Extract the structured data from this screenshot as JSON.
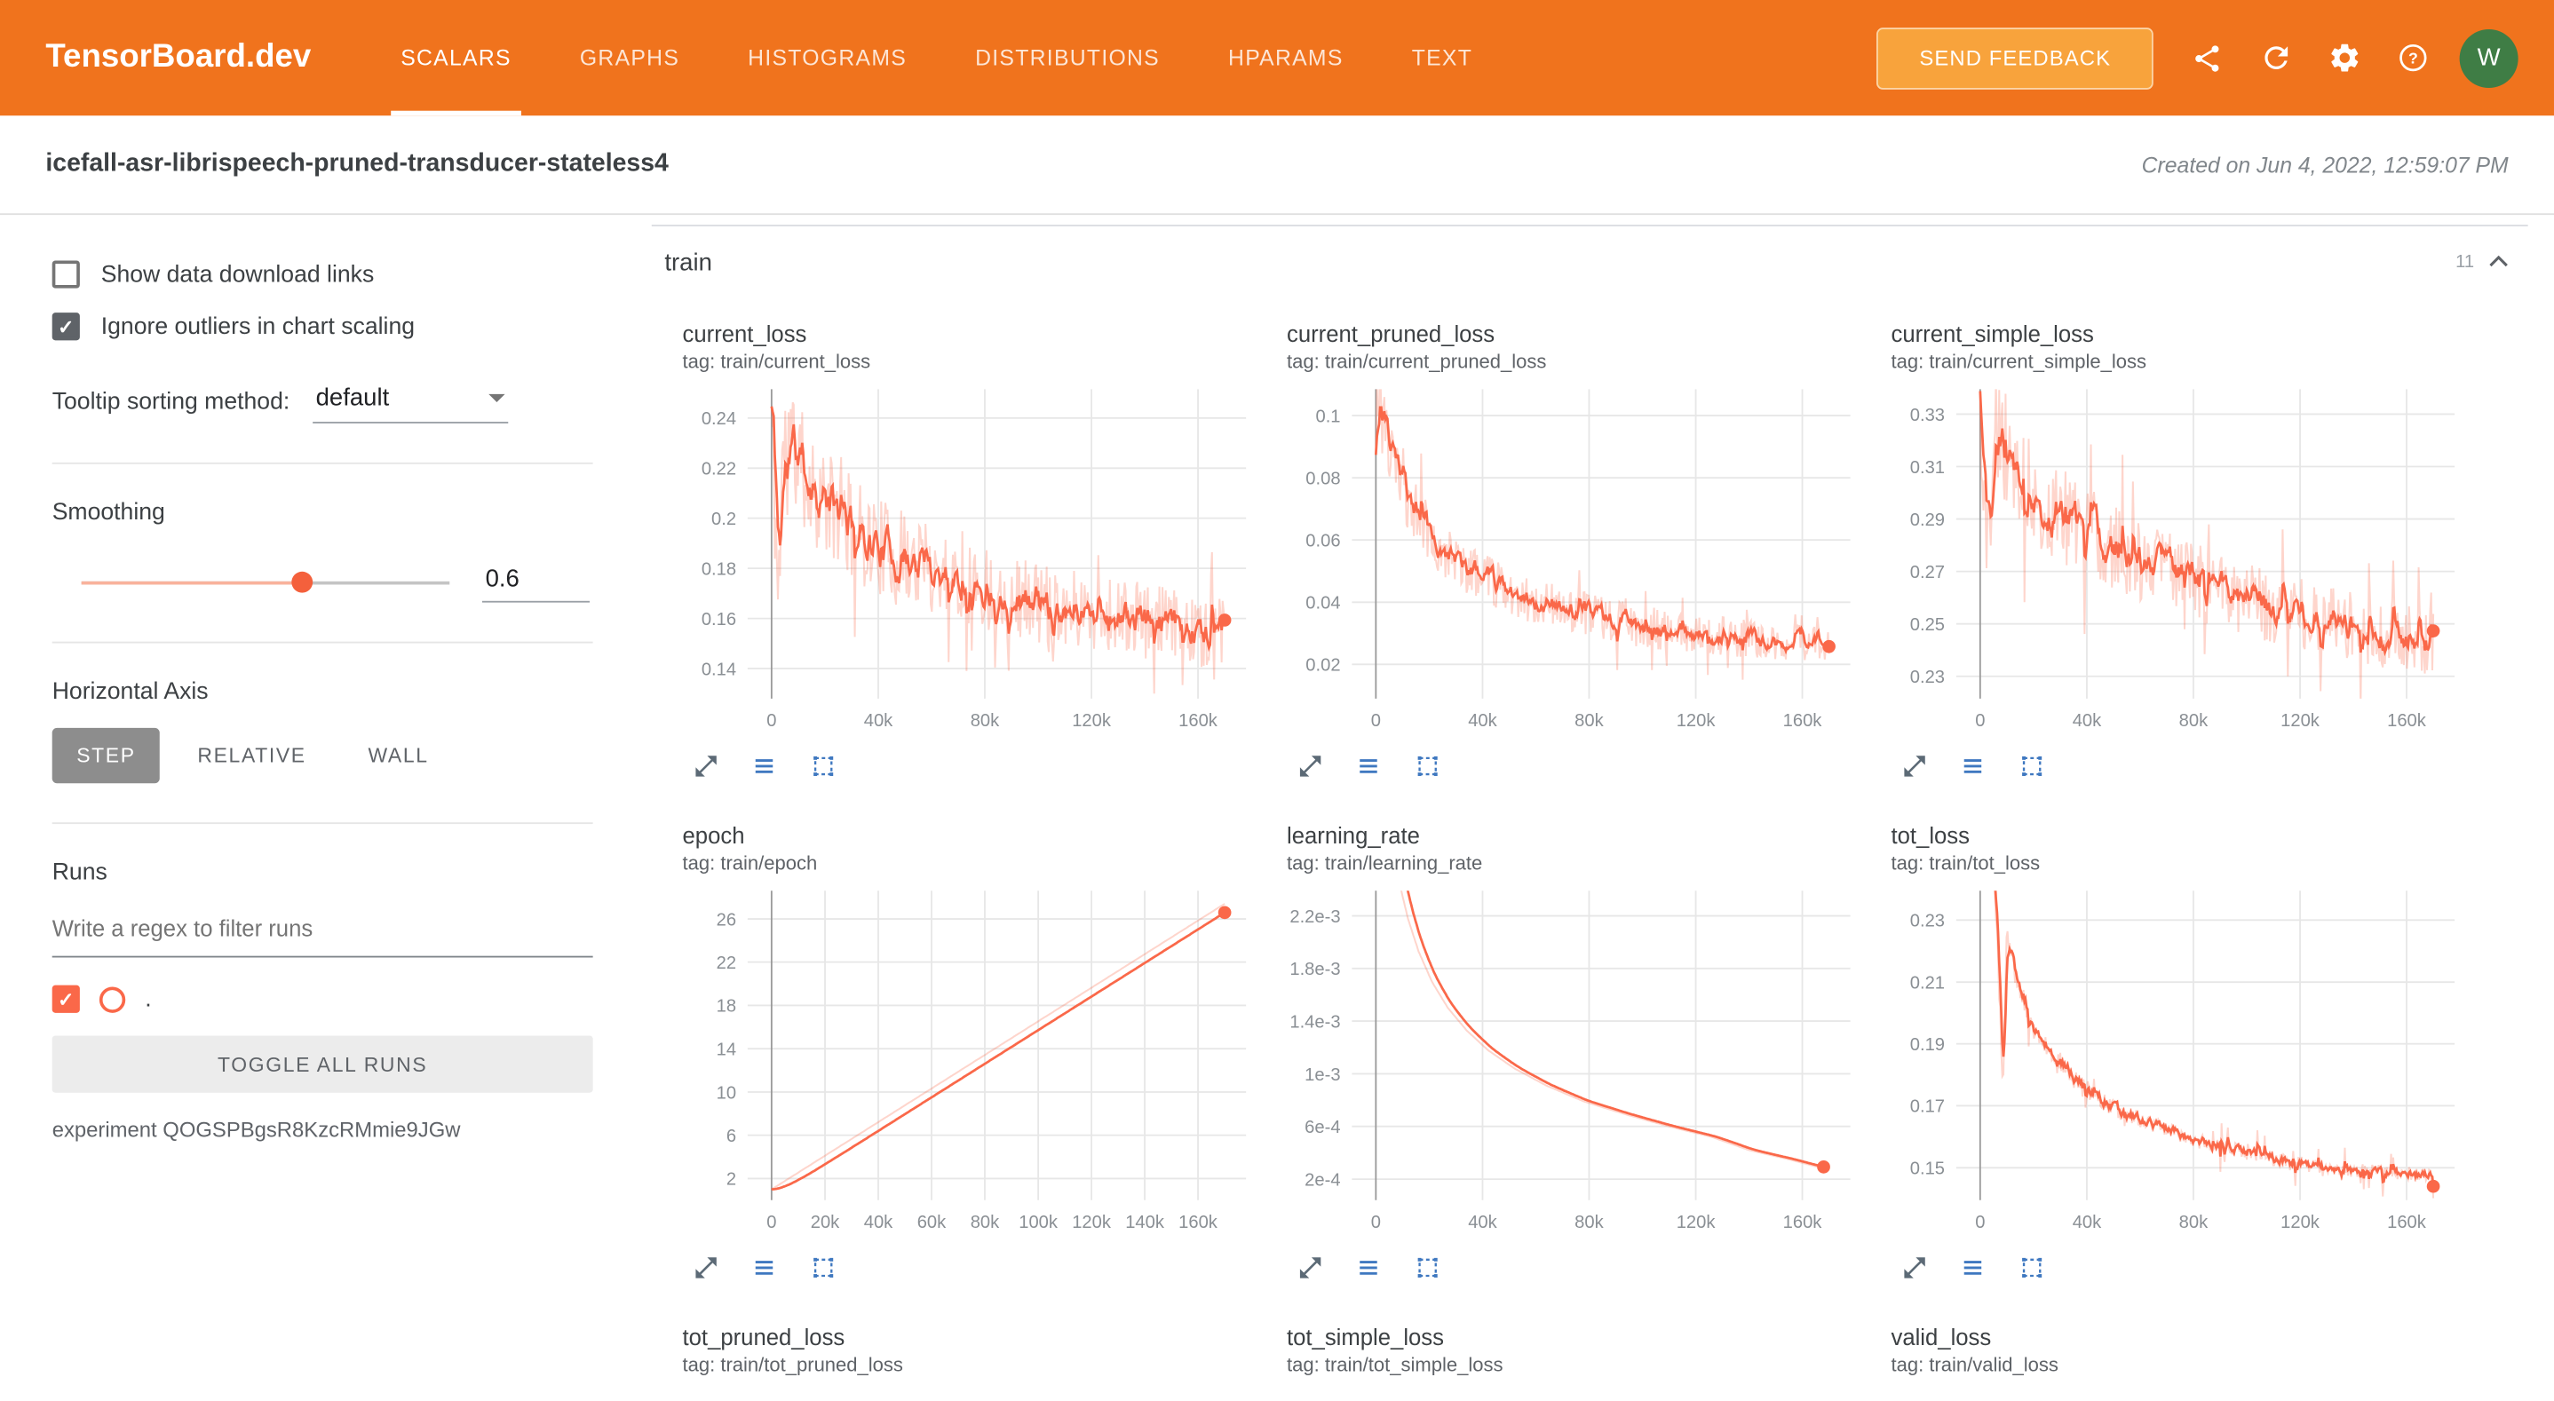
{
  "colors": {
    "header": "#f0731d",
    "accent": "#fa6849",
    "raw_line": "rgba(250,104,73,0.28)"
  },
  "header": {
    "brand": "TensorBoard.dev",
    "tabs": [
      {
        "label": "SCALARS",
        "active": true
      },
      {
        "label": "GRAPHS",
        "active": false
      },
      {
        "label": "HISTOGRAMS",
        "active": false
      },
      {
        "label": "DISTRIBUTIONS",
        "active": false
      },
      {
        "label": "HPARAMS",
        "active": false
      },
      {
        "label": "TEXT",
        "active": false
      }
    ],
    "feedback_button": "SEND FEEDBACK",
    "icons": [
      "share-icon",
      "refresh-icon",
      "settings-icon",
      "help-icon"
    ],
    "avatar": "W"
  },
  "subheader": {
    "title": "icefall-asr-librispeech-pruned-transducer-stateless4",
    "created": "Created on Jun 4, 2022, 12:59:07 PM"
  },
  "sidebar": {
    "show_links_label": "Show data download links",
    "show_links_checked": false,
    "ignore_outliers_label": "Ignore outliers in chart scaling",
    "ignore_outliers_checked": true,
    "tooltip_label": "Tooltip sorting method:",
    "tooltip_value": "default",
    "smoothing_label": "Smoothing",
    "smoothing_value": "0.6",
    "axis_label": "Horizontal Axis",
    "axis_options": [
      "STEP",
      "RELATIVE",
      "WALL"
    ],
    "axis_selected": "STEP",
    "runs_label": "Runs",
    "filter_placeholder": "Write a regex to filter runs",
    "run_name": ".",
    "run_checked": true,
    "toggle_all": "TOGGLE ALL RUNS",
    "experiment": "experiment QOGSPBgsR8KzcRMmie9JGw"
  },
  "section": {
    "title": "train",
    "count": "11"
  },
  "charts": [
    {
      "title": "current_loss",
      "tag": "tag: train/current_loss",
      "x_range": [
        -9000,
        178000
      ],
      "y_range": [
        0.128,
        0.2515
      ],
      "x_ticks": [
        {
          "v": 0,
          "l": "0"
        },
        {
          "v": 40000,
          "l": "40k"
        },
        {
          "v": 80000,
          "l": "80k"
        },
        {
          "v": 120000,
          "l": "120k"
        },
        {
          "v": 160000,
          "l": "160k"
        }
      ],
      "y_ticks": [
        {
          "v": 0.24,
          "l": "0.24"
        },
        {
          "v": 0.22,
          "l": "0.22"
        },
        {
          "v": 0.2,
          "l": "0.2"
        },
        {
          "v": 0.18,
          "l": "0.18"
        },
        {
          "v": 0.16,
          "l": "0.16"
        },
        {
          "v": 0.14,
          "l": "0.14"
        }
      ],
      "trend": [
        [
          0,
          0.244
        ],
        [
          1200,
          0.205
        ],
        [
          2500,
          0.168
        ],
        [
          4000,
          0.225
        ],
        [
          7000,
          0.232
        ],
        [
          12000,
          0.218
        ],
        [
          20000,
          0.206
        ],
        [
          30000,
          0.196
        ],
        [
          45000,
          0.186
        ],
        [
          60000,
          0.18
        ],
        [
          80000,
          0.172
        ],
        [
          100000,
          0.167
        ],
        [
          120000,
          0.163
        ],
        [
          140000,
          0.159
        ],
        [
          160000,
          0.155
        ],
        [
          170000,
          0.153
        ]
      ],
      "noise": 0.026,
      "spike": 2.3,
      "alpha": 0.72,
      "seed": 11
    },
    {
      "title": "current_pruned_loss",
      "tag": "tag: train/current_pruned_loss",
      "x_range": [
        -9000,
        178000
      ],
      "y_range": [
        0.009,
        0.1085
      ],
      "x_ticks": [
        {
          "v": 0,
          "l": "0"
        },
        {
          "v": 40000,
          "l": "40k"
        },
        {
          "v": 80000,
          "l": "80k"
        },
        {
          "v": 120000,
          "l": "120k"
        },
        {
          "v": 160000,
          "l": "160k"
        }
      ],
      "y_ticks": [
        {
          "v": 0.1,
          "l": "0.1"
        },
        {
          "v": 0.08,
          "l": "0.08"
        },
        {
          "v": 0.06,
          "l": "0.06"
        },
        {
          "v": 0.04,
          "l": "0.04"
        },
        {
          "v": 0.02,
          "l": "0.02"
        }
      ],
      "trend": [
        [
          0,
          0.108
        ],
        [
          2000,
          0.098
        ],
        [
          5000,
          0.088
        ],
        [
          9000,
          0.079
        ],
        [
          14000,
          0.07
        ],
        [
          20000,
          0.062
        ],
        [
          28000,
          0.055
        ],
        [
          38000,
          0.049
        ],
        [
          50000,
          0.044
        ],
        [
          65000,
          0.039
        ],
        [
          80000,
          0.036
        ],
        [
          100000,
          0.032
        ],
        [
          120000,
          0.03
        ],
        [
          140000,
          0.028
        ],
        [
          160000,
          0.0265
        ],
        [
          170000,
          0.026
        ]
      ],
      "noise": 0.011,
      "spike": 2.3,
      "alpha": 0.72,
      "seed": 23
    },
    {
      "title": "current_simple_loss",
      "tag": "tag: train/current_simple_loss",
      "x_range": [
        -9000,
        178000
      ],
      "y_range": [
        0.2215,
        0.3395
      ],
      "x_ticks": [
        {
          "v": 0,
          "l": "0"
        },
        {
          "v": 40000,
          "l": "40k"
        },
        {
          "v": 80000,
          "l": "80k"
        },
        {
          "v": 120000,
          "l": "120k"
        },
        {
          "v": 160000,
          "l": "160k"
        }
      ],
      "y_ticks": [
        {
          "v": 0.33,
          "l": "0.33"
        },
        {
          "v": 0.31,
          "l": "0.31"
        },
        {
          "v": 0.29,
          "l": "0.29"
        },
        {
          "v": 0.27,
          "l": "0.27"
        },
        {
          "v": 0.25,
          "l": "0.25"
        },
        {
          "v": 0.23,
          "l": "0.23"
        }
      ],
      "trend": [
        [
          0,
          0.338
        ],
        [
          1500,
          0.3
        ],
        [
          3000,
          0.272
        ],
        [
          5000,
          0.325
        ],
        [
          9000,
          0.318
        ],
        [
          15000,
          0.305
        ],
        [
          25000,
          0.295
        ],
        [
          40000,
          0.285
        ],
        [
          55000,
          0.277
        ],
        [
          75000,
          0.268
        ],
        [
          95000,
          0.261
        ],
        [
          115000,
          0.255
        ],
        [
          135000,
          0.25
        ],
        [
          155000,
          0.245
        ],
        [
          170000,
          0.242
        ]
      ],
      "noise": 0.023,
      "spike": 2.3,
      "alpha": 0.72,
      "seed": 37
    },
    {
      "title": "epoch",
      "tag": "tag: train/epoch",
      "x_range": [
        -9000,
        178000
      ],
      "y_range": [
        0,
        28.6
      ],
      "x_ticks": [
        {
          "v": 0,
          "l": "0"
        },
        {
          "v": 20000,
          "l": "20k"
        },
        {
          "v": 40000,
          "l": "40k"
        },
        {
          "v": 60000,
          "l": "60k"
        },
        {
          "v": 80000,
          "l": "80k"
        },
        {
          "v": 100000,
          "l": "100k"
        },
        {
          "v": 120000,
          "l": "120k"
        },
        {
          "v": 140000,
          "l": "140k"
        },
        {
          "v": 160000,
          "l": "160k"
        }
      ],
      "y_ticks": [
        {
          "v": 26,
          "l": "26"
        },
        {
          "v": 22,
          "l": "22"
        },
        {
          "v": 18,
          "l": "18"
        },
        {
          "v": 14,
          "l": "14"
        },
        {
          "v": 10,
          "l": "10"
        },
        {
          "v": 6,
          "l": "6"
        },
        {
          "v": 2,
          "l": "2"
        }
      ],
      "trend": [
        [
          0,
          1.0
        ],
        [
          170000,
          27.4
        ]
      ],
      "noise": 0,
      "spike": 1,
      "alpha": 0.93,
      "seed": 5
    },
    {
      "title": "learning_rate",
      "tag": "tag: train/learning_rate",
      "x_range": [
        -9000,
        178000
      ],
      "y_range": [
        4e-05,
        0.00239
      ],
      "x_ticks": [
        {
          "v": 0,
          "l": "0"
        },
        {
          "v": 40000,
          "l": "40k"
        },
        {
          "v": 80000,
          "l": "80k"
        },
        {
          "v": 120000,
          "l": "120k"
        },
        {
          "v": 160000,
          "l": "160k"
        }
      ],
      "y_ticks": [
        {
          "v": 0.0022,
          "l": "2.2e-3"
        },
        {
          "v": 0.0018,
          "l": "1.8e-3"
        },
        {
          "v": 0.0014,
          "l": "1.4e-3"
        },
        {
          "v": 0.001,
          "l": "1e-3"
        },
        {
          "v": 0.0006,
          "l": "6e-4"
        },
        {
          "v": 0.0002,
          "l": "2e-4"
        }
      ],
      "trend": [
        [
          0,
          0.0038
        ],
        [
          4000,
          0.00305
        ],
        [
          8000,
          0.00252
        ],
        [
          12000,
          0.00218
        ],
        [
          16000,
          0.00193
        ],
        [
          21000,
          0.0017
        ],
        [
          27000,
          0.0015
        ],
        [
          34000,
          0.00133
        ],
        [
          42000,
          0.00118
        ],
        [
          52000,
          0.00104
        ],
        [
          64000,
          0.00091
        ],
        [
          78000,
          0.00079
        ],
        [
          94000,
          0.00069
        ],
        [
          110000,
          0.0006
        ],
        [
          126000,
          0.00052
        ],
        [
          140000,
          0.00042
        ],
        [
          155000,
          0.00035
        ],
        [
          168000,
          0.00028
        ]
      ],
      "noise": 0,
      "spike": 1,
      "alpha": 0.85,
      "seed": 3
    },
    {
      "title": "tot_loss",
      "tag": "tag: train/tot_loss",
      "x_range": [
        -9000,
        178000
      ],
      "y_range": [
        0.1395,
        0.2395
      ],
      "x_ticks": [
        {
          "v": 0,
          "l": "0"
        },
        {
          "v": 40000,
          "l": "40k"
        },
        {
          "v": 80000,
          "l": "80k"
        },
        {
          "v": 120000,
          "l": "120k"
        },
        {
          "v": 160000,
          "l": "160k"
        }
      ],
      "y_ticks": [
        {
          "v": 0.23,
          "l": "0.23"
        },
        {
          "v": 0.21,
          "l": "0.21"
        },
        {
          "v": 0.19,
          "l": "0.19"
        },
        {
          "v": 0.17,
          "l": "0.17"
        },
        {
          "v": 0.15,
          "l": "0.15"
        }
      ],
      "trend": [
        [
          0,
          0.29
        ],
        [
          3000,
          0.255
        ],
        [
          5500,
          0.242
        ],
        [
          7000,
          0.21
        ],
        [
          8500,
          0.177
        ],
        [
          10000,
          0.225
        ],
        [
          13000,
          0.212
        ],
        [
          17000,
          0.202
        ],
        [
          22000,
          0.193
        ],
        [
          28000,
          0.186
        ],
        [
          35000,
          0.179
        ],
        [
          45000,
          0.172
        ],
        [
          55000,
          0.167
        ],
        [
          70000,
          0.162
        ],
        [
          85000,
          0.158
        ],
        [
          100000,
          0.155
        ],
        [
          115000,
          0.152
        ],
        [
          130000,
          0.15
        ],
        [
          145000,
          0.149
        ],
        [
          160000,
          0.148
        ],
        [
          170000,
          0.147
        ]
      ],
      "noise": 0.004,
      "spike": 3.5,
      "alpha": 0.55,
      "seed": 53
    },
    {
      "title": "tot_pruned_loss",
      "tag": "tag: train/tot_pruned_loss",
      "partial": true
    },
    {
      "title": "tot_simple_loss",
      "tag": "tag: train/tot_simple_loss",
      "partial": true
    },
    {
      "title": "valid_loss",
      "tag": "tag: train/valid_loss",
      "partial": true
    }
  ]
}
